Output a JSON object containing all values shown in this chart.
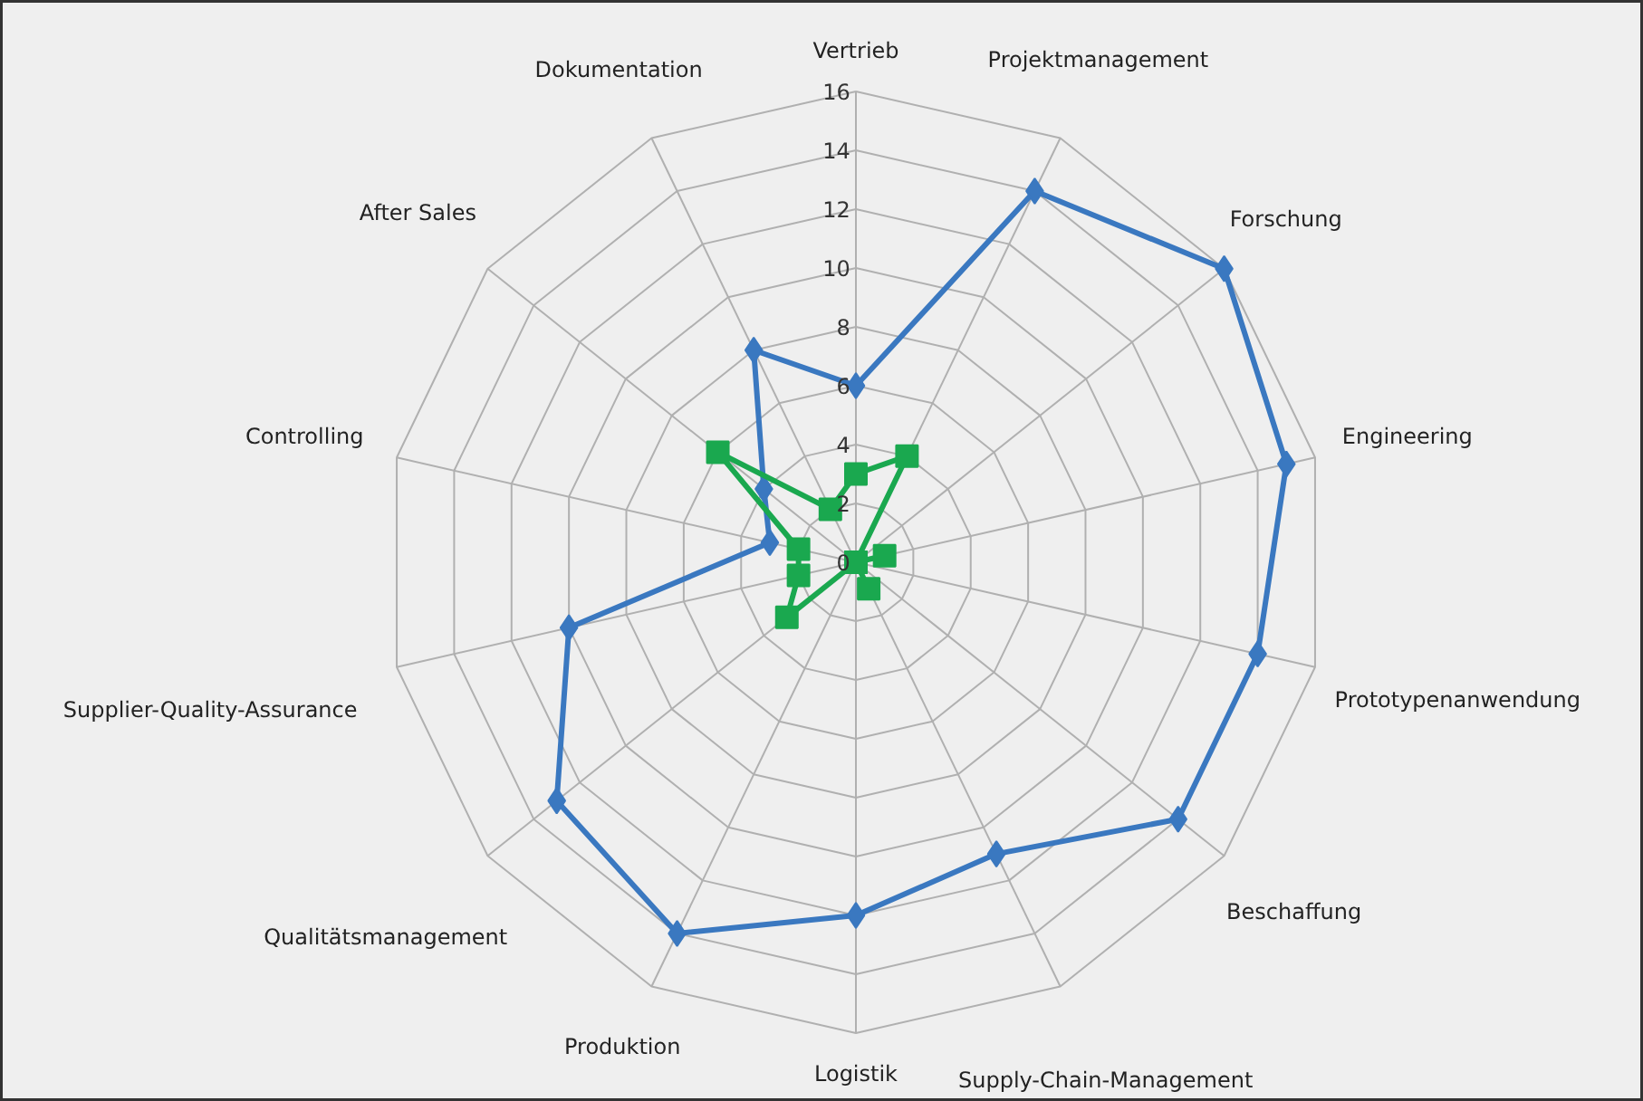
{
  "chart_data": {
    "type": "radar",
    "categories": [
      "Vertrieb",
      "Projektmanagement",
      "Forschung",
      "Engineering",
      "Prototypenanwendung",
      "Beschaffung",
      "Supply-Chain-Management",
      "Logistik",
      "Produktion",
      "Qualitätsmanagement",
      "Supplier-Quality-Assurance",
      "Controlling",
      "After Sales",
      "Dokumentation"
    ],
    "series": [
      {
        "color": "#3a78c0",
        "marker": "diamond",
        "values": [
          6,
          14,
          16,
          15,
          14,
          14,
          11,
          12,
          14,
          13,
          10,
          3,
          4,
          8
        ]
      },
      {
        "color": "#1aa84f",
        "marker": "square",
        "values": [
          3,
          4,
          0,
          1,
          0,
          0,
          1,
          0,
          0,
          3,
          2,
          2,
          6,
          2
        ]
      }
    ],
    "ylim": [
      0,
      16
    ],
    "yticks": [
      0,
      2,
      4,
      6,
      8,
      10,
      12,
      14,
      16
    ],
    "grid": true
  }
}
